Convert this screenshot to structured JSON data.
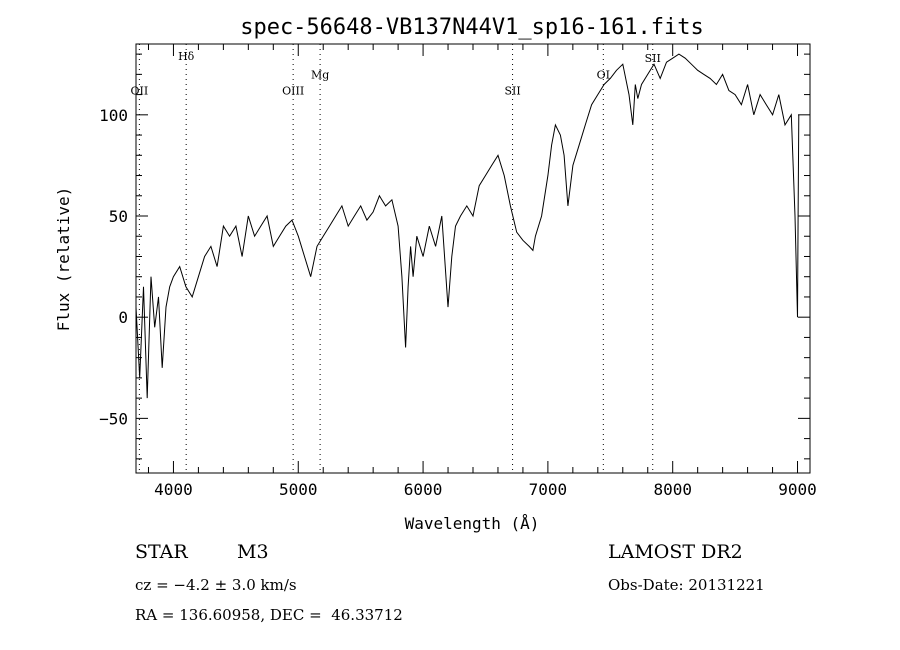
{
  "chart_data": {
    "type": "line",
    "title": "spec-56648-VB137N44V1_sp16-161.fits",
    "xlabel": "Wavelength (Å)",
    "ylabel": "Flux (relative)",
    "xlim": [
      3700,
      9100
    ],
    "ylim": [
      -77,
      135
    ],
    "xticks": [
      4000,
      5000,
      6000,
      7000,
      8000,
      9000
    ],
    "yticks": [
      -50,
      0,
      50,
      100
    ],
    "grid": false,
    "line_color": "#000000",
    "line_labels": [
      {
        "label": "OII",
        "x": 3727,
        "y": 110
      },
      {
        "label": "Hδ",
        "x": 4102,
        "y": 127
      },
      {
        "label": "OIII",
        "x": 4959,
        "y": 110
      },
      {
        "label": "Mg",
        "x": 5175,
        "y": 118
      },
      {
        "label": "SII",
        "x": 6717,
        "y": 110
      },
      {
        "label": "OI",
        "x": 7444,
        "y": 118
      },
      {
        "label": "SII",
        "x": 7840,
        "y": 126
      }
    ],
    "series": [
      {
        "x": [
          3700,
          3730,
          3760,
          3790,
          3820,
          3850,
          3880,
          3910,
          3940,
          3970,
          4000,
          4050,
          4100,
          4150,
          4200,
          4250,
          4300,
          4350,
          4400,
          4450,
          4500,
          4550,
          4600,
          4650,
          4700,
          4750,
          4800,
          4850,
          4900,
          4950,
          5000,
          5050,
          5100,
          5150,
          5200,
          5250,
          5300,
          5350,
          5400,
          5450,
          5500,
          5550,
          5600,
          5650,
          5700,
          5750,
          5800,
          5830,
          5860,
          5880,
          5900,
          5920,
          5950,
          6000,
          6050,
          6100,
          6150,
          6200,
          6230,
          6260,
          6300,
          6350,
          6400,
          6450,
          6500,
          6550,
          6600,
          6650,
          6700,
          6750,
          6800,
          6850,
          6880,
          6900,
          6950,
          7000,
          7030,
          7060,
          7100,
          7130,
          7160,
          7200,
          7250,
          7300,
          7350,
          7400,
          7450,
          7500,
          7550,
          7600,
          7650,
          7680,
          7700,
          7720,
          7750,
          7800,
          7850,
          7900,
          7950,
          8000,
          8050,
          8100,
          8150,
          8200,
          8250,
          8300,
          8350,
          8400,
          8450,
          8500,
          8550,
          8600,
          8650,
          8700,
          8750,
          8800,
          8850,
          8900,
          8950,
          8980,
          9000,
          9005,
          9010
        ],
        "y": [
          5,
          -30,
          15,
          -40,
          20,
          -5,
          10,
          -25,
          5,
          15,
          20,
          25,
          15,
          10,
          20,
          30,
          35,
          25,
          45,
          40,
          45,
          30,
          50,
          40,
          45,
          50,
          35,
          40,
          45,
          48,
          40,
          30,
          20,
          35,
          40,
          45,
          50,
          55,
          45,
          50,
          55,
          48,
          52,
          60,
          55,
          58,
          45,
          20,
          -15,
          15,
          35,
          20,
          40,
          30,
          45,
          35,
          50,
          5,
          30,
          45,
          50,
          55,
          50,
          65,
          70,
          75,
          80,
          70,
          55,
          42,
          38,
          35,
          33,
          40,
          50,
          70,
          85,
          95,
          90,
          80,
          55,
          75,
          85,
          95,
          105,
          110,
          115,
          118,
          122,
          125,
          110,
          95,
          115,
          108,
          115,
          120,
          125,
          118,
          126,
          128,
          130,
          128,
          125,
          122,
          120,
          118,
          115,
          120,
          112,
          110,
          105,
          115,
          100,
          110,
          105,
          100,
          110,
          95,
          100,
          50,
          0,
          50,
          100
        ]
      }
    ]
  },
  "info": {
    "object_class": "STAR",
    "subclass": "M3",
    "survey": "LAMOST DR2",
    "cz": "cz = −4.2 ± 3.0 km/s",
    "obs_date": "Obs-Date: 20131221",
    "coords": "RA = 136.60958, DEC =  46.33712"
  }
}
